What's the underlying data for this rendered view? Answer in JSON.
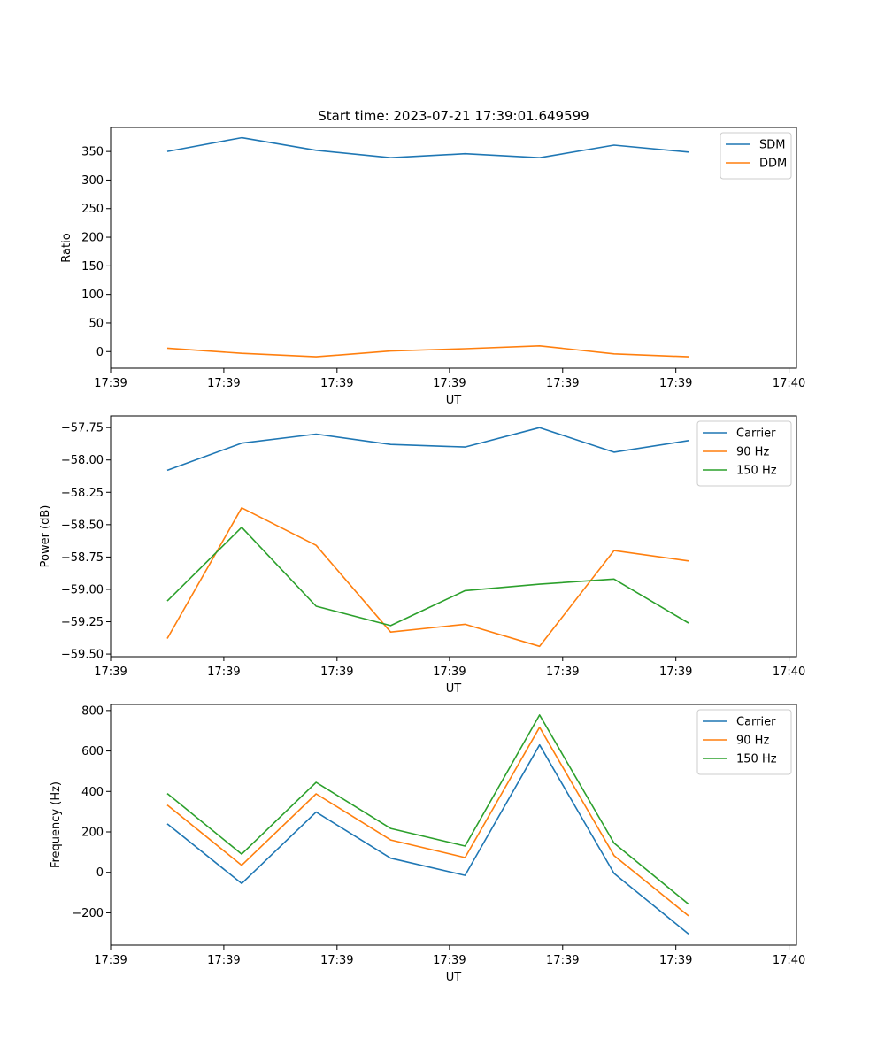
{
  "figure_title": "Start time: 2023-07-21 17:39:01.649599",
  "colors": {
    "blue": "#1f77b4",
    "orange": "#ff7f0e",
    "green": "#2ca02c"
  },
  "chart_data": [
    {
      "type": "line",
      "title": "Start time: 2023-07-21 17:39:01.649599",
      "xlabel": "UT",
      "ylabel": "Ratio",
      "x": [
        1,
        2,
        3,
        4,
        5,
        6,
        7,
        8
      ],
      "xlim": [
        0.24,
        9.45
      ],
      "xticks": [
        0.24,
        1.76,
        3.28,
        4.79,
        6.31,
        7.83,
        9.35
      ],
      "xtick_labels": [
        "17:39",
        "17:39",
        "17:39",
        "17:39",
        "17:39",
        "17:39",
        "17:40"
      ],
      "ylim": [
        -29,
        392
      ],
      "yticks": [
        0,
        50,
        100,
        150,
        200,
        250,
        300,
        350
      ],
      "ytick_labels": [
        "0",
        "50",
        "100",
        "150",
        "200",
        "250",
        "300",
        "350"
      ],
      "legend": "top-right",
      "series": [
        {
          "name": "SDM",
          "color": "#1f77b4",
          "values": [
            350,
            374,
            352,
            339,
            346,
            339,
            361,
            349
          ]
        },
        {
          "name": "DDM",
          "color": "#ff7f0e",
          "values": [
            6,
            -3,
            -9,
            1,
            5,
            10,
            -4,
            -9
          ]
        }
      ]
    },
    {
      "type": "line",
      "xlabel": "UT",
      "ylabel": "Power (dB)",
      "x": [
        1,
        2,
        3,
        4,
        5,
        6,
        7,
        8
      ],
      "xlim": [
        0.24,
        9.45
      ],
      "xticks": [
        0.24,
        1.76,
        3.28,
        4.79,
        6.31,
        7.83,
        9.35
      ],
      "xtick_labels": [
        "17:39",
        "17:39",
        "17:39",
        "17:39",
        "17:39",
        "17:39",
        "17:40"
      ],
      "ylim": [
        -59.52,
        -57.66
      ],
      "yticks": [
        -59.5,
        -59.25,
        -59.0,
        -58.75,
        -58.5,
        -58.25,
        -58.0,
        -57.75
      ],
      "ytick_labels": [
        "−59.50",
        "−59.25",
        "−59.00",
        "−58.75",
        "−58.50",
        "−58.25",
        "−58.00",
        "−57.75"
      ],
      "legend": "top-right",
      "series": [
        {
          "name": "Carrier",
          "color": "#1f77b4",
          "values": [
            -58.08,
            -57.87,
            -57.8,
            -57.88,
            -57.9,
            -57.75,
            -57.94,
            -57.85
          ]
        },
        {
          "name": "90 Hz",
          "color": "#ff7f0e",
          "values": [
            -59.38,
            -58.37,
            -58.66,
            -59.33,
            -59.27,
            -59.44,
            -58.7,
            -58.78
          ]
        },
        {
          "name": "150 Hz",
          "color": "#2ca02c",
          "values": [
            -59.09,
            -58.52,
            -59.13,
            -59.28,
            -59.01,
            -58.96,
            -58.92,
            -59.26
          ]
        }
      ]
    },
    {
      "type": "line",
      "xlabel": "UT",
      "ylabel": "Frequency (Hz)",
      "x": [
        1,
        2,
        3,
        4,
        5,
        6,
        7,
        8
      ],
      "xlim": [
        0.24,
        9.45
      ],
      "xticks": [
        0.24,
        1.76,
        3.28,
        4.79,
        6.31,
        7.83,
        9.35
      ],
      "xtick_labels": [
        "17:39",
        "17:39",
        "17:39",
        "17:39",
        "17:39",
        "17:39",
        "17:40"
      ],
      "ylim": [
        -360,
        830
      ],
      "yticks": [
        -200,
        0,
        200,
        400,
        600,
        800
      ],
      "ytick_labels": [
        "−200",
        "0",
        "200",
        "400",
        "600",
        "800"
      ],
      "legend": "top-right",
      "series": [
        {
          "name": "Carrier",
          "color": "#1f77b4",
          "values": [
            240,
            -55,
            298,
            70,
            -15,
            630,
            -5,
            -305
          ]
        },
        {
          "name": "90 Hz",
          "color": "#ff7f0e",
          "values": [
            333,
            35,
            388,
            160,
            73,
            717,
            83,
            -215
          ]
        },
        {
          "name": "150 Hz",
          "color": "#2ca02c",
          "values": [
            390,
            90,
            445,
            217,
            130,
            778,
            145,
            -157
          ]
        }
      ]
    }
  ]
}
